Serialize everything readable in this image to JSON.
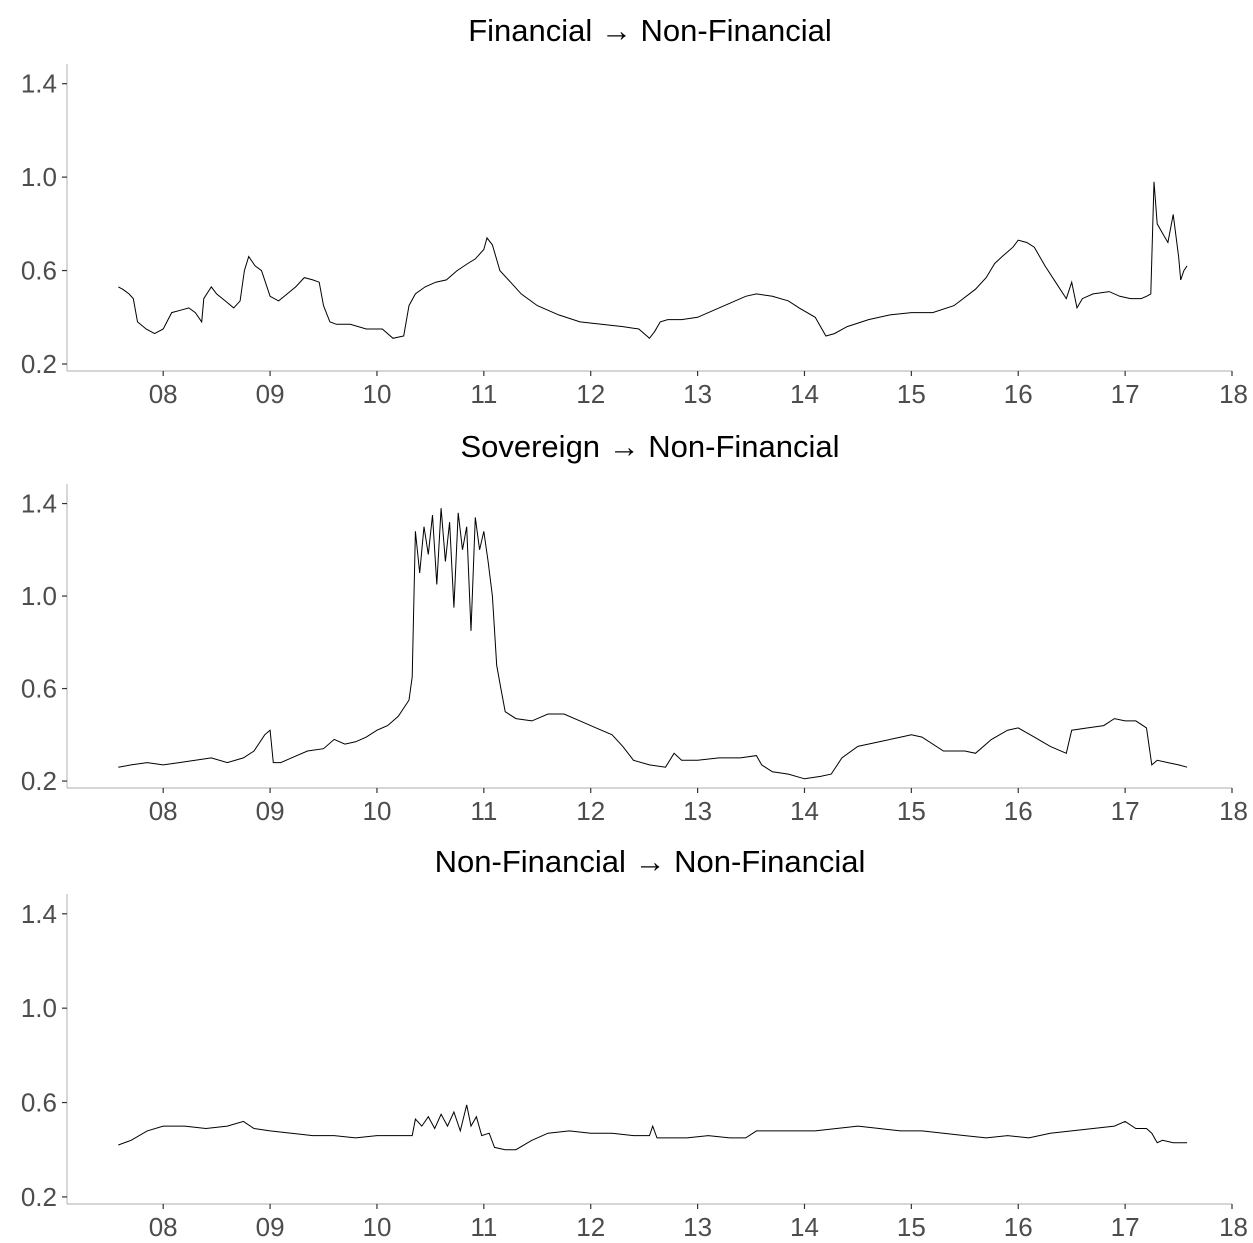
{
  "chart_data": [
    {
      "type": "line",
      "title": "Financial → Non-Financial",
      "xlabel": "",
      "ylabel": "",
      "x_ticks": [
        "08",
        "09",
        "10",
        "11",
        "12",
        "13",
        "14",
        "15",
        "16",
        "17",
        "18"
      ],
      "x_tick_values": [
        2008,
        2009,
        2010,
        2011,
        2012,
        2013,
        2014,
        2015,
        2016,
        2017,
        2018
      ],
      "y_ticks": [
        "0.2",
        "0.6",
        "1.0",
        "1.4"
      ],
      "y_tick_values": [
        0.2,
        0.6,
        1.0,
        1.4
      ],
      "xlim": [
        2007.1,
        2018.0
      ],
      "ylim": [
        0.17,
        1.45
      ],
      "grid": false,
      "series": [
        {
          "x": [
            2007.58,
            2007.62,
            2007.68,
            2007.72,
            2007.76,
            2007.84,
            2007.92,
            2008.0,
            2008.08,
            2008.16,
            2008.24,
            2008.3,
            2008.36,
            2008.38,
            2008.45,
            2008.5,
            2008.58,
            2008.66,
            2008.72,
            2008.76,
            2008.8,
            2008.86,
            2008.92,
            2009.0,
            2009.08,
            2009.16,
            2009.24,
            2009.32,
            2009.4,
            2009.46,
            2009.5,
            2009.56,
            2009.62,
            2009.75,
            2009.9,
            2010.05,
            2010.15,
            2010.25,
            2010.3,
            2010.36,
            2010.45,
            2010.55,
            2010.65,
            2010.75,
            2010.85,
            2010.92,
            2011.0,
            2011.03,
            2011.08,
            2011.15,
            2011.25,
            2011.35,
            2011.5,
            2011.7,
            2011.9,
            2012.1,
            2012.3,
            2012.45,
            2012.55,
            2012.6,
            2012.65,
            2012.72,
            2012.85,
            2013.0,
            2013.15,
            2013.3,
            2013.45,
            2013.55,
            2013.7,
            2013.85,
            2013.95,
            2014.1,
            2014.2,
            2014.28,
            2014.4,
            2014.6,
            2014.8,
            2015.0,
            2015.2,
            2015.4,
            2015.6,
            2015.7,
            2015.78,
            2015.85,
            2015.95,
            2016.0,
            2016.08,
            2016.15,
            2016.25,
            2016.35,
            2016.45,
            2016.5,
            2016.55,
            2016.6,
            2016.7,
            2016.85,
            2016.95,
            2017.05,
            2017.15,
            2017.2,
            2017.24,
            2017.27,
            2017.3,
            2017.35,
            2017.4,
            2017.45,
            2017.5,
            2017.52,
            2017.55,
            2017.58
          ],
          "values": [
            0.53,
            0.52,
            0.5,
            0.48,
            0.38,
            0.35,
            0.33,
            0.35,
            0.42,
            0.43,
            0.44,
            0.42,
            0.38,
            0.48,
            0.53,
            0.5,
            0.47,
            0.44,
            0.47,
            0.6,
            0.66,
            0.62,
            0.6,
            0.49,
            0.47,
            0.5,
            0.53,
            0.57,
            0.56,
            0.55,
            0.45,
            0.38,
            0.37,
            0.37,
            0.35,
            0.35,
            0.31,
            0.32,
            0.45,
            0.5,
            0.53,
            0.55,
            0.56,
            0.6,
            0.63,
            0.65,
            0.69,
            0.74,
            0.71,
            0.6,
            0.55,
            0.5,
            0.45,
            0.41,
            0.38,
            0.37,
            0.36,
            0.35,
            0.31,
            0.34,
            0.38,
            0.39,
            0.39,
            0.4,
            0.43,
            0.46,
            0.49,
            0.5,
            0.49,
            0.47,
            0.44,
            0.4,
            0.32,
            0.33,
            0.36,
            0.39,
            0.41,
            0.42,
            0.42,
            0.45,
            0.52,
            0.57,
            0.63,
            0.66,
            0.7,
            0.73,
            0.72,
            0.7,
            0.62,
            0.55,
            0.48,
            0.55,
            0.44,
            0.48,
            0.5,
            0.51,
            0.49,
            0.48,
            0.48,
            0.49,
            0.5,
            0.98,
            0.8,
            0.76,
            0.72,
            0.84,
            0.66,
            0.56,
            0.6,
            0.62
          ]
        }
      ]
    },
    {
      "type": "line",
      "title": "Sovereign → Non-Financial",
      "xlabel": "",
      "ylabel": "",
      "x_ticks": [
        "08",
        "09",
        "10",
        "11",
        "12",
        "13",
        "14",
        "15",
        "16",
        "17",
        "18"
      ],
      "x_tick_values": [
        2008,
        2009,
        2010,
        2011,
        2012,
        2013,
        2014,
        2015,
        2016,
        2017,
        2018
      ],
      "y_ticks": [
        "0.2",
        "0.6",
        "1.0",
        "1.4"
      ],
      "y_tick_values": [
        0.2,
        0.6,
        1.0,
        1.4
      ],
      "xlim": [
        2007.1,
        2018.0
      ],
      "ylim": [
        0.17,
        1.45
      ],
      "grid": false,
      "series": [
        {
          "x": [
            2007.58,
            2007.7,
            2007.85,
            2008.0,
            2008.15,
            2008.3,
            2008.45,
            2008.6,
            2008.75,
            2008.85,
            2008.95,
            2009.0,
            2009.03,
            2009.1,
            2009.2,
            2009.35,
            2009.5,
            2009.6,
            2009.7,
            2009.8,
            2009.9,
            2010.0,
            2010.1,
            2010.2,
            2010.3,
            2010.33,
            2010.36,
            2010.4,
            2010.44,
            2010.48,
            2010.52,
            2010.56,
            2010.6,
            2010.64,
            2010.68,
            2010.72,
            2010.76,
            2010.8,
            2010.84,
            2010.88,
            2010.92,
            2010.96,
            2011.0,
            2011.04,
            2011.08,
            2011.12,
            2011.16,
            2011.2,
            2011.3,
            2011.45,
            2011.6,
            2011.75,
            2011.9,
            2012.05,
            2012.2,
            2012.3,
            2012.4,
            2012.55,
            2012.7,
            2012.78,
            2012.85,
            2013.0,
            2013.2,
            2013.4,
            2013.55,
            2013.6,
            2013.7,
            2013.85,
            2014.0,
            2014.15,
            2014.25,
            2014.35,
            2014.5,
            2014.7,
            2014.9,
            2015.0,
            2015.1,
            2015.3,
            2015.5,
            2015.6,
            2015.75,
            2015.9,
            2016.0,
            2016.15,
            2016.3,
            2016.45,
            2016.5,
            2016.65,
            2016.8,
            2016.9,
            2017.0,
            2017.1,
            2017.2,
            2017.25,
            2017.3,
            2017.4,
            2017.5,
            2017.58
          ],
          "values": [
            0.26,
            0.27,
            0.28,
            0.27,
            0.28,
            0.29,
            0.3,
            0.28,
            0.3,
            0.33,
            0.4,
            0.42,
            0.28,
            0.28,
            0.3,
            0.33,
            0.34,
            0.38,
            0.36,
            0.37,
            0.39,
            0.42,
            0.44,
            0.48,
            0.55,
            0.65,
            1.28,
            1.1,
            1.3,
            1.18,
            1.35,
            1.05,
            1.38,
            1.15,
            1.32,
            0.95,
            1.36,
            1.2,
            1.3,
            0.85,
            1.34,
            1.2,
            1.28,
            1.15,
            1.0,
            0.7,
            0.6,
            0.5,
            0.47,
            0.46,
            0.49,
            0.49,
            0.46,
            0.43,
            0.4,
            0.35,
            0.29,
            0.27,
            0.26,
            0.32,
            0.29,
            0.29,
            0.3,
            0.3,
            0.31,
            0.27,
            0.24,
            0.23,
            0.21,
            0.22,
            0.23,
            0.3,
            0.35,
            0.37,
            0.39,
            0.4,
            0.39,
            0.33,
            0.33,
            0.32,
            0.38,
            0.42,
            0.43,
            0.39,
            0.35,
            0.32,
            0.42,
            0.43,
            0.44,
            0.47,
            0.46,
            0.46,
            0.43,
            0.27,
            0.29,
            0.28,
            0.27,
            0.26
          ]
        }
      ]
    },
    {
      "type": "line",
      "title": "Non-Financial → Non-Financial",
      "xlabel": "",
      "ylabel": "",
      "x_ticks": [
        "08",
        "09",
        "10",
        "11",
        "12",
        "13",
        "14",
        "15",
        "16",
        "17",
        "18"
      ],
      "x_tick_values": [
        2008,
        2009,
        2010,
        2011,
        2012,
        2013,
        2014,
        2015,
        2016,
        2017,
        2018
      ],
      "y_ticks": [
        "0.2",
        "0.6",
        "1.0",
        "1.4"
      ],
      "y_tick_values": [
        0.2,
        0.6,
        1.0,
        1.4
      ],
      "xlim": [
        2007.1,
        2018.0
      ],
      "ylim": [
        0.17,
        1.45
      ],
      "grid": false,
      "series": [
        {
          "x": [
            2007.58,
            2007.7,
            2007.85,
            2008.0,
            2008.2,
            2008.4,
            2008.6,
            2008.75,
            2008.85,
            2009.0,
            2009.2,
            2009.4,
            2009.6,
            2009.8,
            2010.0,
            2010.2,
            2010.33,
            2010.36,
            2010.42,
            2010.48,
            2010.54,
            2010.6,
            2010.66,
            2010.72,
            2010.78,
            2010.84,
            2010.88,
            2010.93,
            2010.98,
            2011.05,
            2011.1,
            2011.2,
            2011.3,
            2011.45,
            2011.6,
            2011.8,
            2012.0,
            2012.2,
            2012.4,
            2012.55,
            2012.58,
            2012.62,
            2012.7,
            2012.9,
            2013.1,
            2013.3,
            2013.45,
            2013.55,
            2013.7,
            2013.9,
            2014.1,
            2014.3,
            2014.5,
            2014.7,
            2014.9,
            2015.1,
            2015.3,
            2015.5,
            2015.7,
            2015.9,
            2016.1,
            2016.3,
            2016.5,
            2016.7,
            2016.9,
            2017.0,
            2017.1,
            2017.2,
            2017.25,
            2017.3,
            2017.35,
            2017.45,
            2017.58
          ],
          "values": [
            0.42,
            0.44,
            0.48,
            0.5,
            0.5,
            0.49,
            0.5,
            0.52,
            0.49,
            0.48,
            0.47,
            0.46,
            0.46,
            0.45,
            0.46,
            0.46,
            0.46,
            0.53,
            0.5,
            0.54,
            0.49,
            0.55,
            0.5,
            0.56,
            0.48,
            0.59,
            0.5,
            0.54,
            0.46,
            0.47,
            0.41,
            0.4,
            0.4,
            0.44,
            0.47,
            0.48,
            0.47,
            0.47,
            0.46,
            0.46,
            0.5,
            0.45,
            0.45,
            0.45,
            0.46,
            0.45,
            0.45,
            0.48,
            0.48,
            0.48,
            0.48,
            0.49,
            0.5,
            0.49,
            0.48,
            0.48,
            0.47,
            0.46,
            0.45,
            0.46,
            0.45,
            0.47,
            0.48,
            0.49,
            0.5,
            0.52,
            0.49,
            0.49,
            0.47,
            0.43,
            0.44,
            0.43,
            0.43
          ]
        }
      ]
    }
  ]
}
